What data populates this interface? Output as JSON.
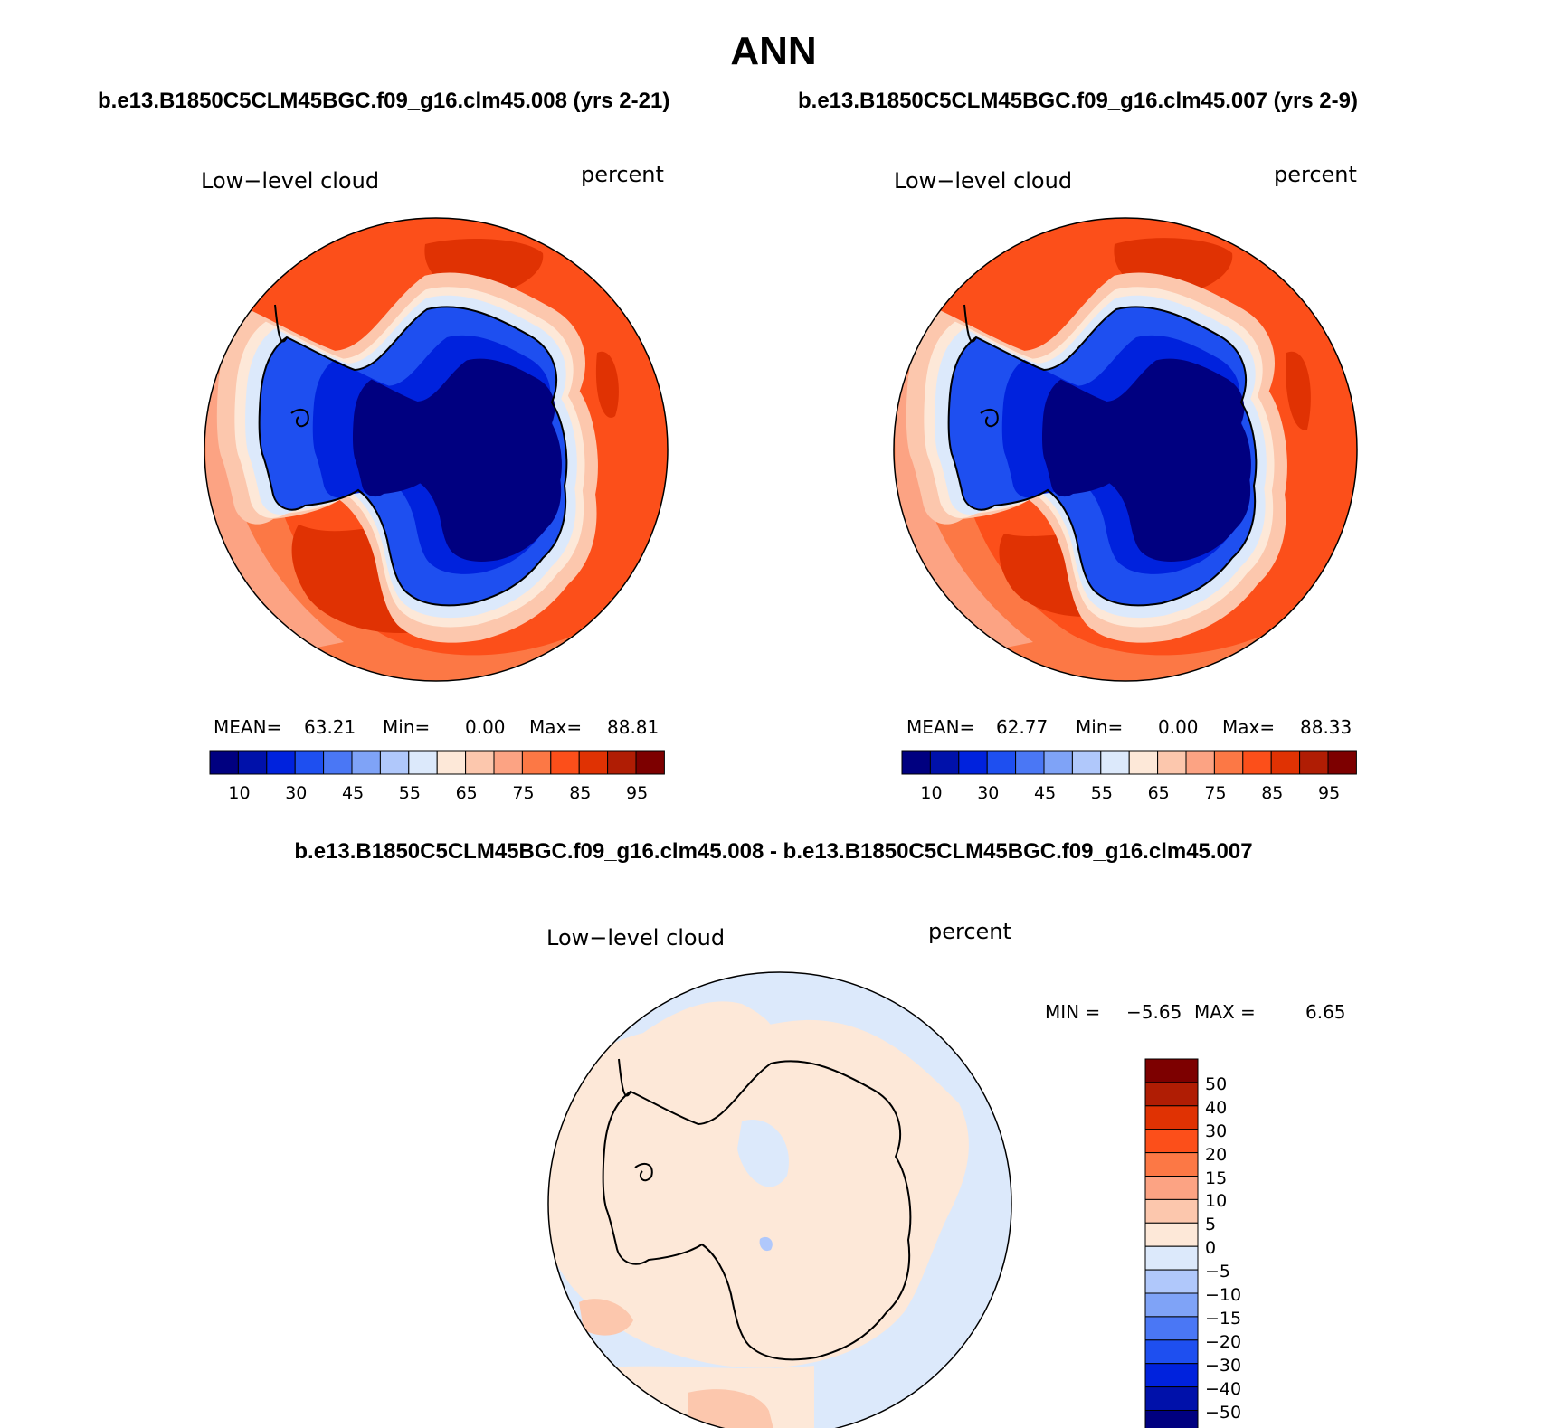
{
  "title": "ANN",
  "panels": [
    {
      "case": "b.e13.B1850C5CLM45BGC.f09_g16.clm45.008 (yrs 2-21)",
      "variable": "Low−level cloud",
      "units": "percent",
      "stats": {
        "mean_label": "MEAN=",
        "mean": "63.21",
        "min_label": "Min=",
        "min": "0.00",
        "max_label": "Max=",
        "max": "88.81"
      }
    },
    {
      "case": "b.e13.B1850C5CLM45BGC.f09_g16.clm45.007 (yrs 2-9)",
      "variable": "Low−level cloud",
      "units": "percent",
      "stats": {
        "mean_label": "MEAN=",
        "mean": "62.77",
        "min_label": "Min=",
        "min": "0.00",
        "max_label": "Max=",
        "max": "88.33"
      }
    }
  ],
  "diff": {
    "title": "b.e13.B1850C5CLM45BGC.f09_g16.clm45.008 - b.e13.B1850C5CLM45BGC.f09_g16.clm45.007",
    "variable": "Low−level cloud",
    "units": "percent",
    "stats": {
      "min_label": "MIN =",
      "min": "−5.65",
      "max_label": "MAX =",
      "max": "6.65"
    }
  },
  "colorbar_field": {
    "colors": [
      "#000080",
      "#0011aa",
      "#0022dd",
      "#1e4ff0",
      "#4a77f5",
      "#7fa3f7",
      "#b0c8fb",
      "#dce9fb",
      "#fde8d8",
      "#fcc7ad",
      "#fca383",
      "#fc7845",
      "#fc4f1a",
      "#e03203",
      "#b01d04",
      "#7d0000"
    ],
    "tick_labels": [
      "10",
      "30",
      "45",
      "55",
      "65",
      "75",
      "85",
      "95"
    ]
  },
  "colorbar_diff": {
    "colors": [
      "#7d0000",
      "#b01d04",
      "#e03203",
      "#fc4f1a",
      "#fc7845",
      "#fca383",
      "#fcc7ad",
      "#fde8d8",
      "#dce9fb",
      "#b0c8fb",
      "#7fa3f7",
      "#4a77f5",
      "#1e4ff0",
      "#0022dd",
      "#0011aa",
      "#000080"
    ],
    "tick_labels": [
      "50",
      "40",
      "30",
      "20",
      "15",
      "10",
      "5",
      "0",
      "−5",
      "−10",
      "−15",
      "−20",
      "−30",
      "−40",
      "−50"
    ]
  }
}
